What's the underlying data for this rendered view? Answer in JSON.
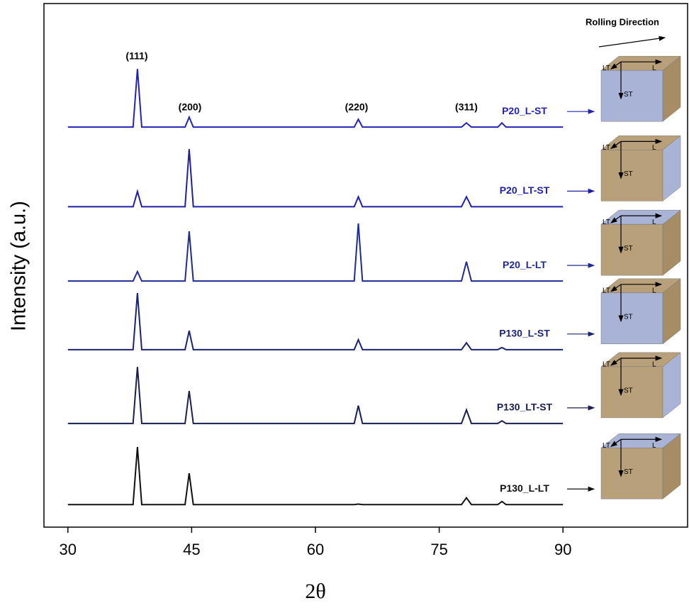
{
  "chart_data": {
    "type": "line",
    "x_label": "2θ",
    "y_label": "Intensity (a.u.)",
    "annotations": [
      "(111)",
      "(200)",
      "(220)",
      "(311)"
    ],
    "side_title": "Rolling Direction",
    "cube_labels": [
      "LT",
      "L",
      "ST"
    ],
    "x": [
      30,
      37.9,
      38.43,
      38.95,
      44.2,
      44.7,
      45.2,
      64.7,
      65.2,
      65.7,
      77.7,
      78.3,
      78.9,
      82.1,
      82.6,
      83.1,
      90
    ],
    "series": [
      {
        "name": "P20_L-ST",
        "color": "#2323b4",
        "values": [
          76.4,
          76.4,
          87.5,
          76.4,
          76.4,
          78.3,
          76.4,
          76.4,
          77.9,
          76.4,
          76.4,
          77.2,
          76.4,
          76.4,
          77.2,
          76.4,
          76.4
        ]
      },
      {
        "name": "P20_LT-ST",
        "color": "#1f1fa6",
        "values": [
          61.2,
          61.2,
          64.1,
          61.2,
          61.2,
          72.2,
          61.2,
          61.2,
          63.1,
          61.2,
          61.2,
          63.1,
          61.2,
          61.2,
          61.2,
          61.2,
          61.2
        ]
      },
      {
        "name": "P20_L-LT",
        "color": "#1e2b92",
        "values": [
          47.0,
          47.0,
          48.8,
          47.0,
          47.0,
          56.5,
          47.0,
          47.0,
          58.0,
          47.0,
          47.0,
          50.7,
          47.0,
          47.0,
          47.0,
          47.0,
          47.0
        ]
      },
      {
        "name": "P130_L-ST",
        "color": "#1b2472",
        "values": [
          33.9,
          33.9,
          44.7,
          33.9,
          33.9,
          37.5,
          33.9,
          33.9,
          35.8,
          33.9,
          33.9,
          35.2,
          33.9,
          33.9,
          34.3,
          33.9,
          33.9
        ]
      },
      {
        "name": "P130_LT-ST",
        "color": "#1a1f4e",
        "values": [
          19.8,
          19.8,
          30.6,
          19.8,
          19.8,
          26.0,
          19.8,
          19.8,
          23.2,
          19.8,
          19.8,
          22.4,
          19.8,
          19.8,
          20.3,
          19.8,
          19.8
        ]
      },
      {
        "name": "P130_L-LT",
        "color": "#111111",
        "values": [
          4.3,
          4.3,
          15.3,
          4.3,
          4.3,
          10.3,
          4.3,
          4.3,
          4.4,
          4.3,
          4.3,
          5.6,
          4.3,
          4.3,
          4.9,
          4.3,
          4.3
        ]
      }
    ],
    "xlim": [
      27.1,
      105.1
    ],
    "ylim": [
      0,
      100
    ],
    "xticks": [
      30,
      45,
      60,
      75,
      90
    ]
  }
}
